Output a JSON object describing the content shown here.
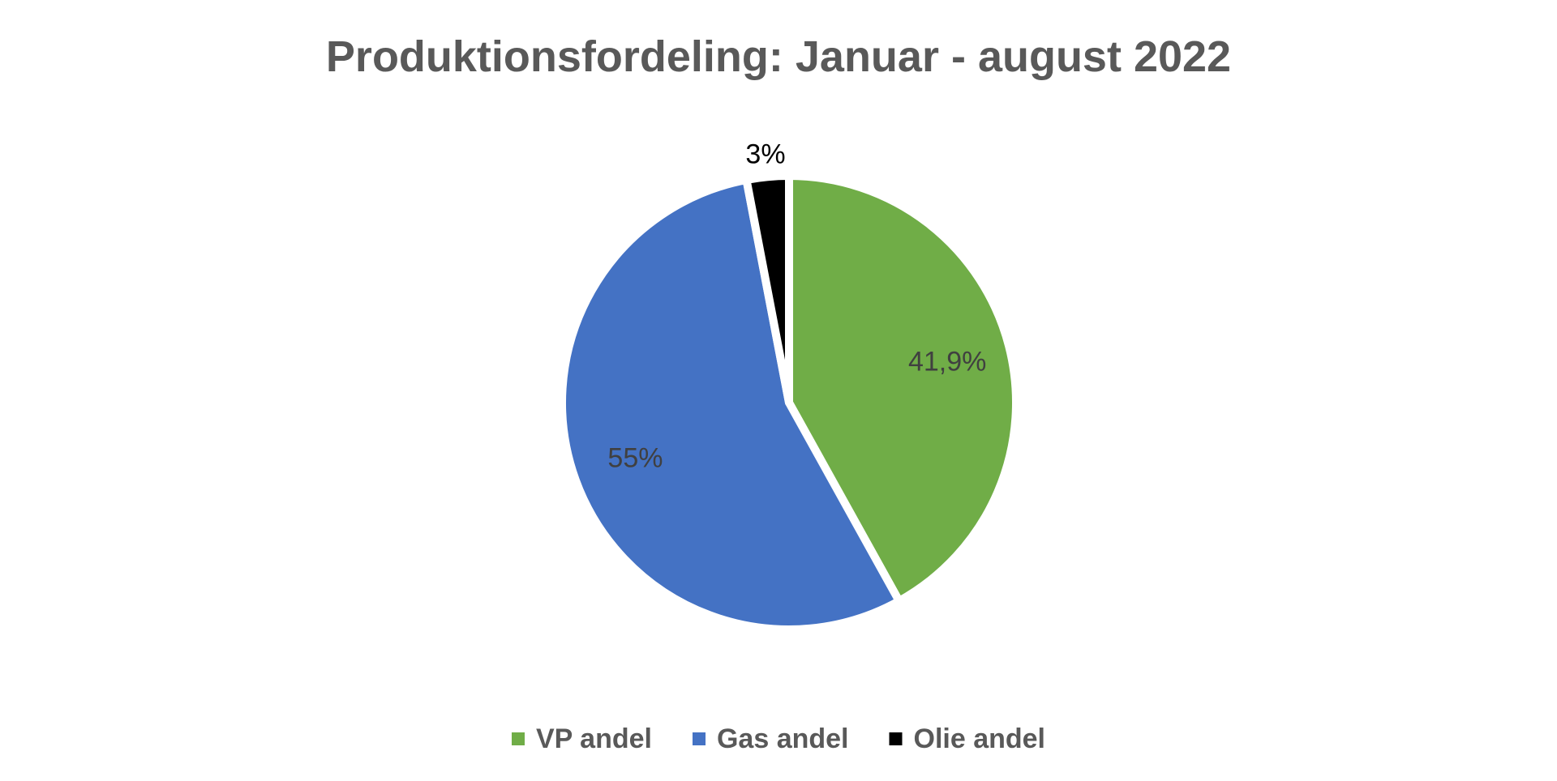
{
  "chart_data": {
    "type": "pie",
    "title": "Produktionsfordeling: Januar - august 2022",
    "slices": [
      {
        "name": "VP andel",
        "value": 41.9,
        "label": "41,9%",
        "color": "#70ad47"
      },
      {
        "name": "Gas andel",
        "value": 55,
        "label": "55%",
        "color": "#4472c4"
      },
      {
        "name": "Olie andel",
        "value": 3,
        "label": "3%",
        "color": "#000000"
      }
    ],
    "legend_position": "bottom",
    "start_angle": "12 o'clock, clockwise"
  }
}
